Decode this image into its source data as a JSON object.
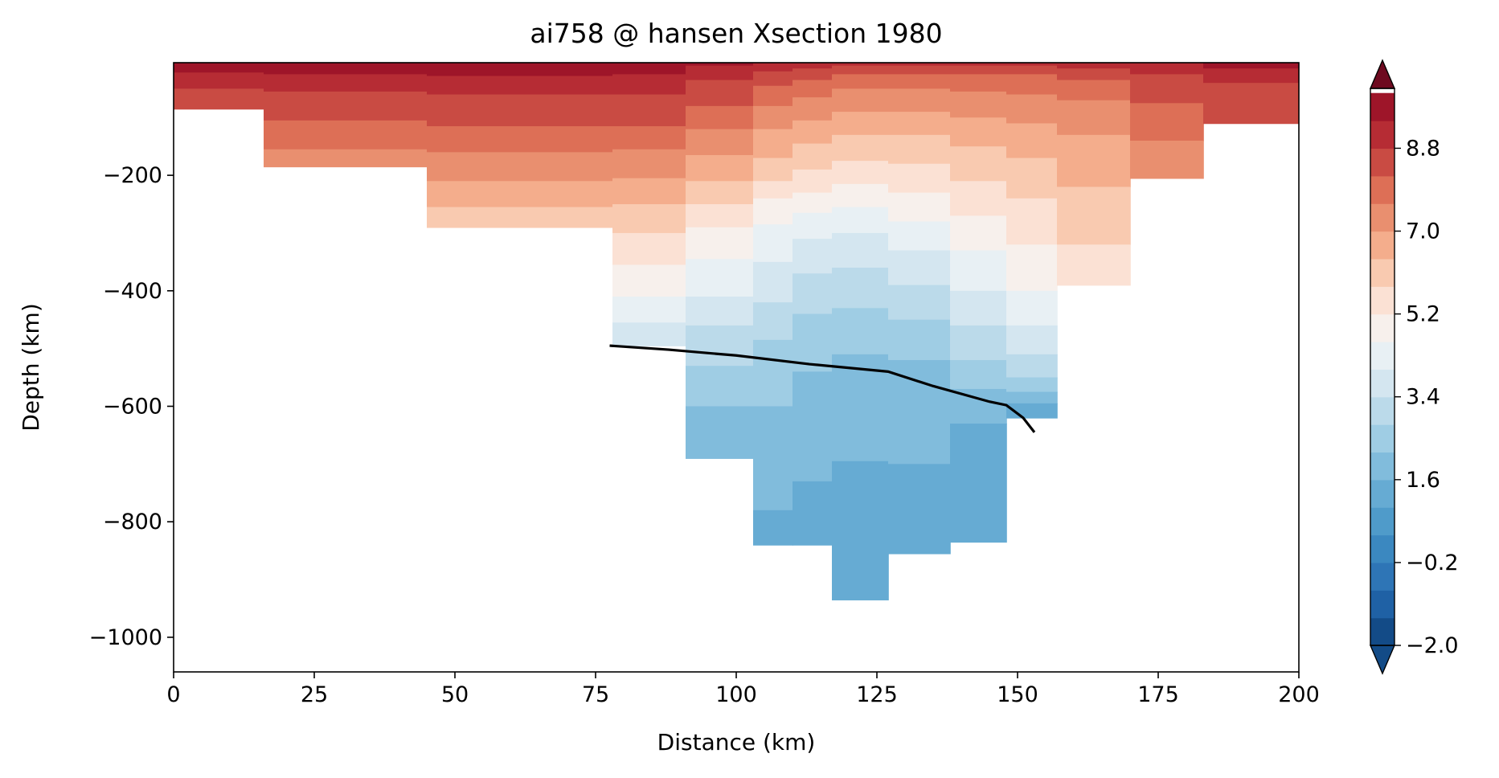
{
  "chart_data": {
    "type": "contour",
    "title": "ai758 @ hansen Xsection 1980",
    "xlabel": "Distance (km)",
    "ylabel": "Depth (km)",
    "xlim": [
      0,
      200
    ],
    "ylim": [
      -1060,
      -5
    ],
    "x_ticks": [
      0,
      25,
      50,
      75,
      100,
      125,
      150,
      175,
      200
    ],
    "x_tick_labels": [
      "0",
      "25",
      "50",
      "75",
      "100",
      "125",
      "150",
      "175",
      "200"
    ],
    "y_ticks": [
      -1000,
      -800,
      -600,
      -400,
      -200
    ],
    "y_tick_labels": [
      "−1000",
      "−800",
      "−600",
      "−400",
      "−200"
    ],
    "colorbar": {
      "min": -2.0,
      "max": 10.1,
      "levels": [
        -2.0,
        -1.4,
        -0.8,
        -0.2,
        0.4,
        1.0,
        1.6,
        2.2,
        2.8,
        3.4,
        4.0,
        4.6,
        5.2,
        5.8,
        6.4,
        7.0,
        7.6,
        8.2,
        8.8,
        9.4,
        10.0
      ],
      "ticks": [
        -2.0,
        -0.2,
        1.6,
        3.4,
        5.2,
        7.0,
        8.8
      ],
      "tick_labels": [
        "−2.0",
        "−0.2",
        "1.6",
        "3.4",
        "5.2",
        "7.0",
        "8.8"
      ],
      "colors": [
        "#134b87",
        "#1f61a5",
        "#2e75b6",
        "#3b88c0",
        "#4f9bca",
        "#66abd3",
        "#81bcdc",
        "#9fcde4",
        "#bbdaea",
        "#d4e6f0",
        "#e8f0f4",
        "#f7f0ec",
        "#fbe1d4",
        "#f9cab0",
        "#f4ad8c",
        "#e98f6f",
        "#dd6f56",
        "#c94b43",
        "#b62c34",
        "#9e1529",
        "#6e0a20"
      ],
      "extend": "both"
    },
    "columns": [
      {
        "x0": 0,
        "x1": 16,
        "depth": -85,
        "boundaries": [
          -22,
          -50
        ]
      },
      {
        "x0": 16,
        "x1": 45,
        "depth": -185,
        "boundaries": [
          -25,
          -55,
          -105,
          -155
        ]
      },
      {
        "x0": 45,
        "x1": 78,
        "depth": -290,
        "boundaries": [
          -28,
          -60,
          -115,
          -160,
          -210,
          -255
        ]
      },
      {
        "x0": 78,
        "x1": 91,
        "depth": -495,
        "boundaries": [
          -25,
          -60,
          -115,
          -155,
          -205,
          -250,
          -300,
          -355,
          -410,
          -455
        ]
      },
      {
        "x0": 91,
        "x1": 103,
        "depth": -690,
        "boundaries": [
          -10,
          -35,
          -80,
          -120,
          -165,
          -210,
          -250,
          -290,
          -345,
          -410,
          -460,
          -530,
          -600
        ]
      },
      {
        "x0": 103,
        "x1": 110,
        "depth": -840,
        "boundaries": [
          -5,
          -20,
          -45,
          -80,
          -120,
          -170,
          -210,
          -240,
          -285,
          -350,
          -420,
          -485,
          -600,
          -780
        ]
      },
      {
        "x0": 110,
        "x1": 117,
        "depth": -840,
        "boundaries": [
          -5,
          -15,
          -35,
          -65,
          -105,
          -145,
          -190,
          -230,
          -265,
          -310,
          -370,
          -440,
          -540,
          -730
        ]
      },
      {
        "x0": 117,
        "x1": 127,
        "depth": -935,
        "boundaries": [
          -5,
          -10,
          -25,
          -50,
          -90,
          -130,
          -175,
          -215,
          -255,
          -300,
          -360,
          -430,
          -510,
          -695
        ]
      },
      {
        "x0": 127,
        "x1": 138,
        "depth": -855,
        "boundaries": [
          -5,
          -10,
          -25,
          -50,
          -90,
          -130,
          -180,
          -230,
          -280,
          -330,
          -390,
          -450,
          -520,
          -700
        ]
      },
      {
        "x0": 138,
        "x1": 148,
        "depth": -835,
        "boundaries": [
          -5,
          -10,
          -25,
          -55,
          -100,
          -150,
          -210,
          -270,
          -330,
          -400,
          -460,
          -520,
          -570,
          -630
        ]
      },
      {
        "x0": 148,
        "x1": 157,
        "depth": -620,
        "boundaries": [
          -5,
          -10,
          -25,
          -60,
          -110,
          -170,
          -240,
          -320,
          -400,
          -460,
          -510,
          -550,
          -575,
          -595
        ]
      },
      {
        "x0": 157,
        "x1": 170,
        "depth": -390,
        "boundaries": [
          -5,
          -15,
          -35,
          -70,
          -130,
          -220,
          -320
        ]
      },
      {
        "x0": 170,
        "x1": 183,
        "depth": -205,
        "boundaries": [
          -5,
          -25,
          -75,
          -140
        ]
      },
      {
        "x0": 183,
        "x1": 200,
        "depth": -110,
        "boundaries": [
          -15,
          -40
        ]
      }
    ],
    "line": {
      "x": [
        77.5,
        88,
        100,
        113,
        127,
        135,
        145,
        148,
        151,
        153
      ],
      "y": [
        -495,
        -502,
        -512,
        -527,
        -540,
        -565,
        -592,
        -598,
        -620,
        -645
      ]
    }
  }
}
